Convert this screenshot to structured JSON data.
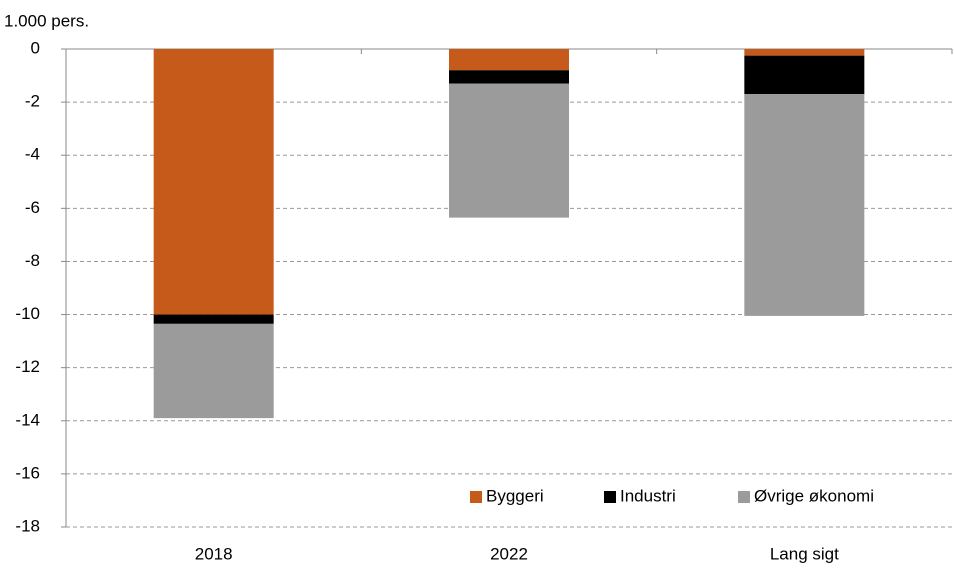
{
  "chart_data": {
    "type": "stacked_bar",
    "y_label": "1.000 pers.",
    "categories": [
      "2018",
      "2022",
      "Lang sigt"
    ],
    "series": [
      {
        "name": "Byggeri",
        "color": "#c55a1a",
        "values": [
          -10.0,
          -0.8,
          -0.25
        ]
      },
      {
        "name": "Industri",
        "color": "#000000",
        "values": [
          -0.35,
          -0.5,
          -1.45
        ]
      },
      {
        "name": "Øvrige økonomi",
        "color": "#9b9b9b",
        "values": [
          -3.55,
          -5.05,
          -8.35
        ]
      }
    ],
    "ylim": [
      -18,
      0
    ],
    "yticks": [
      0,
      -2,
      -4,
      -6,
      -8,
      -10,
      -12,
      -14,
      -16,
      -18
    ],
    "grid": true,
    "legend": "lower right"
  }
}
